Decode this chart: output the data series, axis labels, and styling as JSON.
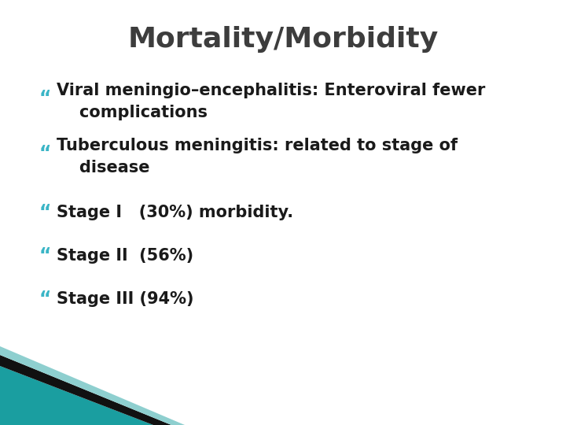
{
  "title": "Mortality/Morbidity",
  "title_color": "#3d3d3d",
  "title_fontsize": 26,
  "background_color": "#ffffff",
  "bullet_char": "“",
  "bullet_color": "#3ab5c6",
  "text_color": "#1a1a1a",
  "bullet_fontsize": 15,
  "items": [
    {
      "line1": "Viral meningio–encephalitis: Enteroviral fewer",
      "line2": "    complications"
    },
    {
      "line1": "Tuberculous meningitis: related to stage of",
      "line2": "    disease"
    },
    {
      "line1": "Stage I   (30%) morbidity.",
      "line2": null
    },
    {
      "line1": "Stage II  (56%)",
      "line2": null
    },
    {
      "line1": "Stage III (94%)",
      "line2": null
    }
  ],
  "footer_teal_color": "#1a9ea0",
  "footer_dark_color": "#111111",
  "footer_light_color": "#8ecfcf"
}
